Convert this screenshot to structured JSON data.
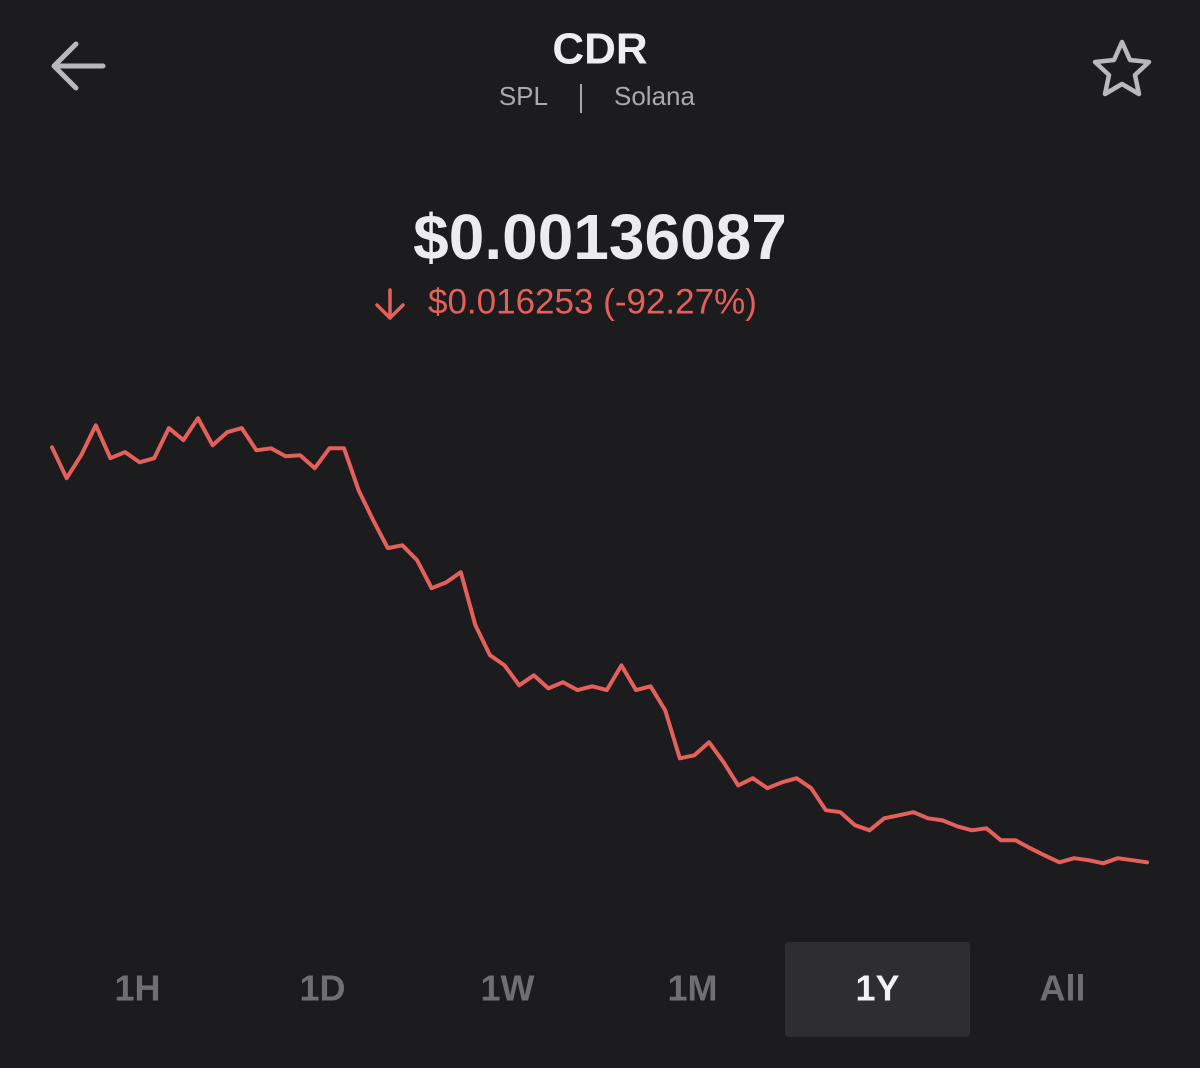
{
  "header": {
    "title": "CDR",
    "subtitle": [
      "SPL",
      "Solana"
    ]
  },
  "price": "$0.00136087",
  "change": "$0.016253 (-92.27%)",
  "chart_data": {
    "type": "line",
    "color": "#e5605a",
    "values": [
      0.01761,
      0.0164,
      0.0173,
      0.01847,
      0.01718,
      0.01742,
      0.01702,
      0.01718,
      0.01836,
      0.01789,
      0.01875,
      0.01769,
      0.0182,
      0.01836,
      0.01749,
      0.01757,
      0.01726,
      0.0173,
      0.01679,
      0.01757,
      0.01757,
      0.01593,
      0.01475,
      0.01366,
      0.01377,
      0.01319,
      0.01209,
      0.01232,
      0.01272,
      0.01064,
      0.00947,
      0.00907,
      0.00829,
      0.00868,
      0.00817,
      0.00841,
      0.0081,
      0.00825,
      0.0081,
      0.00907,
      0.0081,
      0.00825,
      0.00731,
      0.00543,
      0.00555,
      0.00606,
      0.00528,
      0.00437,
      0.00465,
      0.00426,
      0.00449,
      0.00465,
      0.00426,
      0.0034,
      0.00332,
      0.00281,
      0.00261,
      0.00308,
      0.0032,
      0.00332,
      0.00308,
      0.003,
      0.00277,
      0.00261,
      0.00269,
      0.00222,
      0.00222,
      0.00191,
      0.00163,
      0.00136,
      0.00152,
      0.00144,
      0.00132,
      0.00152,
      0.00144,
      0.00136
    ],
    "ylim": [
      0,
      0.0195
    ]
  },
  "tabs": [
    "1H",
    "1D",
    "1W",
    "1M",
    "1Y",
    "All"
  ],
  "active_tab": "1Y"
}
